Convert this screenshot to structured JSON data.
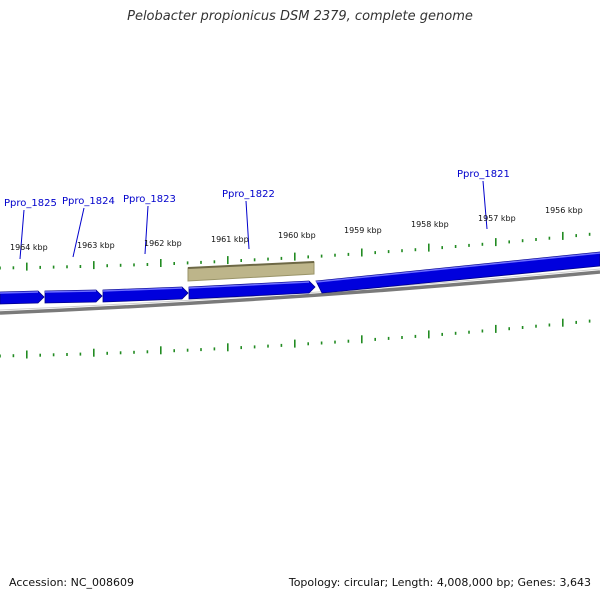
{
  "title": "Pelobacter propionicus DSM 2379, complete genome",
  "footer": {
    "accession": "Accession: NC_008609",
    "summary": "Topology: circular; Length: 4,008,000 bp; Genes: 3,643"
  },
  "colors": {
    "gene_fill": "#0000dd",
    "gene_highlight": "#6f6fff",
    "label": "#0000cc",
    "backbone": "#7a7a7a",
    "tick": "#228b22",
    "feature_fill": "#bdb58a",
    "feature_edge": "#7f7a52"
  },
  "genes": [
    {
      "name": "Ppro_1825"
    },
    {
      "name": "Ppro_1824"
    },
    {
      "name": "Ppro_1823"
    },
    {
      "name": "Ppro_1822"
    },
    {
      "name": "Ppro_1821"
    }
  ],
  "kbp_labels": [
    "1964 kbp",
    "1963 kbp",
    "1962 kbp",
    "1961 kbp",
    "1960 kbp",
    "1959 kbp",
    "1958 kbp",
    "1957 kbp",
    "1956 kbp"
  ]
}
